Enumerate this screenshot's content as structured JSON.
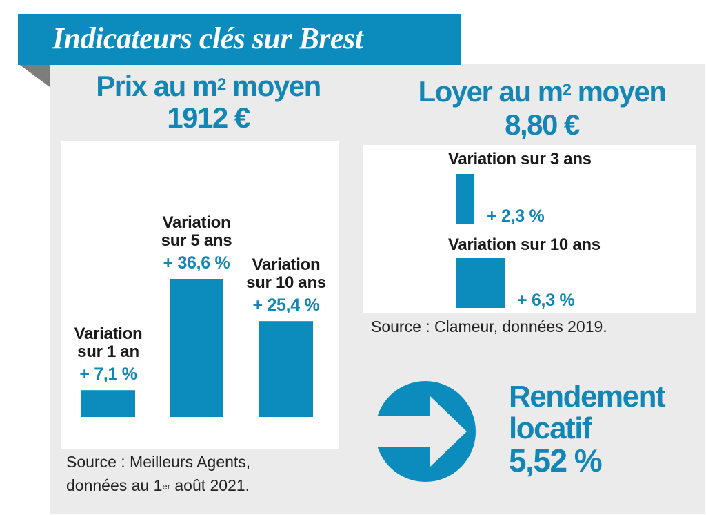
{
  "title": "Indicateurs clés sur Brest",
  "colors": {
    "accent": "#0b8cbd",
    "accent_text": "#1386b5",
    "panel": "#ebebeb",
    "fold": "#7d7d7d"
  },
  "prix": {
    "heading": "Prix au m",
    "heading_sup": "2",
    "heading_tail": " moyen",
    "value": "1912 €",
    "source_line1": "Source : Meilleurs Agents,",
    "source_line2_pre": "données au 1",
    "source_line2_sup": "er",
    "source_line2_post": " août 2021."
  },
  "loyer": {
    "heading": "Loyer au m",
    "heading_sup": "2",
    "heading_tail": " moyen",
    "value": "8,80 €",
    "source": "Source : Clameur, données 2019."
  },
  "rendement": {
    "line1": "Rendement",
    "line2": "locatif",
    "value": "5,52 %",
    "icon": "arrow-right-circle-icon"
  },
  "chart_data": [
    {
      "type": "bar",
      "categories": [
        "Variation sur 1 an",
        "Variation sur 5 ans",
        "Variation sur 10 ans"
      ],
      "category_lines": [
        [
          "Variation",
          "sur 1 an"
        ],
        [
          "Variation",
          "sur 5 ans"
        ],
        [
          "Variation",
          "sur 10 ans"
        ]
      ],
      "values": [
        7.1,
        36.6,
        25.4
      ],
      "value_labels": [
        "+ 7,1 %",
        "+ 36,6 %",
        "+ 25,4 %"
      ],
      "unit": "%",
      "orientation": "vertical",
      "ylim": [
        0,
        40
      ],
      "grid": false
    },
    {
      "type": "bar",
      "categories": [
        "Variation sur 3 ans",
        "Variation sur 10 ans"
      ],
      "values": [
        2.3,
        6.3
      ],
      "value_labels": [
        "+ 2,3 %",
        "+ 6,3 %"
      ],
      "unit": "%",
      "orientation": "area-squares",
      "grid": false
    }
  ]
}
